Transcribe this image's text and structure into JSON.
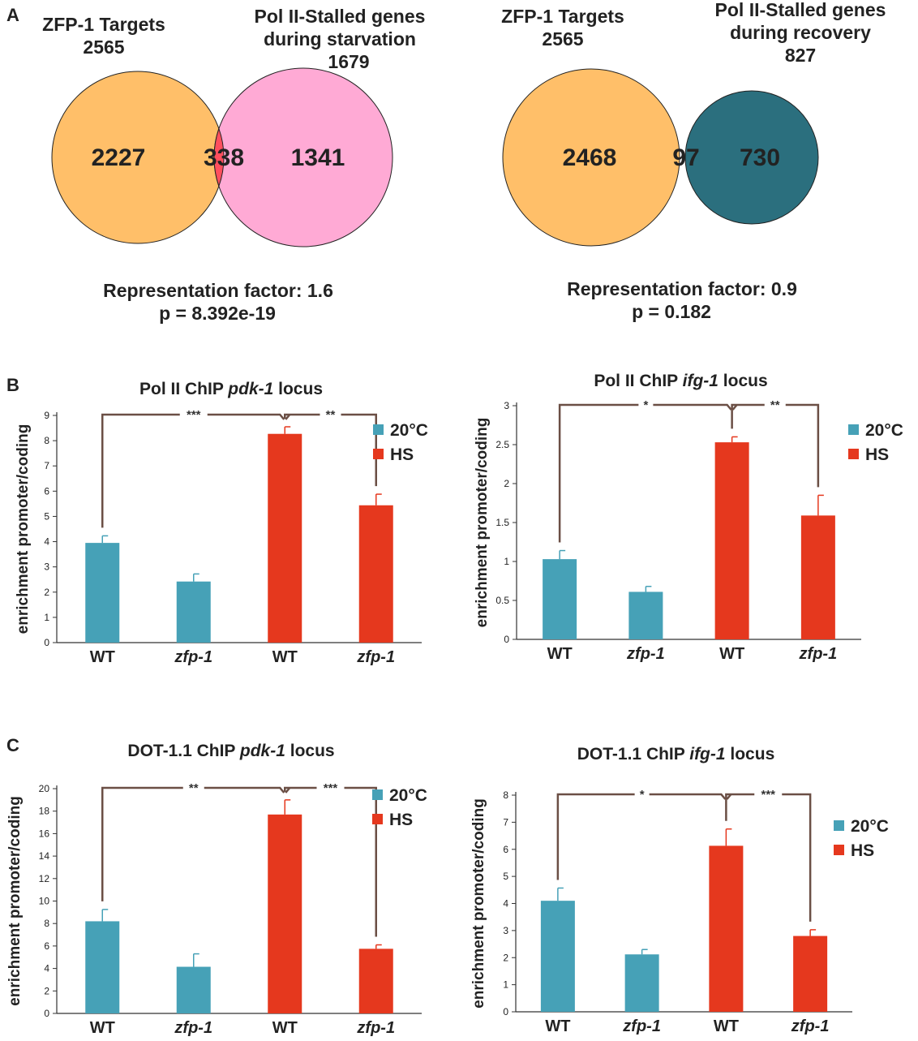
{
  "panels": {
    "a": "A",
    "b": "B",
    "c": "C"
  },
  "colors": {
    "zfp1_targets": "#ffbf69",
    "starvation": "#ffaad5",
    "overlap_starv": "#ff4f5e",
    "recovery": "#2b6f7e",
    "overlap_rec": "#c8c8bf",
    "c20": "#46a1b7",
    "hs": "#e5381e",
    "bracket": "#6b4f45",
    "axis": "#333333"
  },
  "venns": [
    {
      "left_label": "ZFP-1 Targets",
      "left_total": "2565",
      "right_label_1": "Pol II-Stalled genes",
      "right_label_2": "during starvation",
      "right_total": "1679",
      "left_only": "2227",
      "overlap": "338",
      "right_only": "1341",
      "factor": "Representation factor: 1.6",
      "p": "p =  8.392e-19"
    },
    {
      "left_label": "ZFP-1 Targets",
      "left_total": "2565",
      "right_label_1": "Pol II-Stalled genes",
      "right_label_2": "during recovery",
      "right_total": "827",
      "left_only": "2468",
      "overlap": "97",
      "right_only": "730",
      "factor": "Representation factor: 0.9",
      "p": "p = 0.182"
    }
  ],
  "chart_data": [
    {
      "type": "bar",
      "title_pre": "Pol II ChIP ",
      "title_gene": "pdk-1",
      "title_post": " locus",
      "ylabel": "enrichment promoter/coding",
      "categories": [
        "WT",
        "zfp-1",
        "WT",
        "zfp-1"
      ],
      "category_italic": [
        false,
        true,
        false,
        true
      ],
      "values": [
        3.95,
        2.42,
        8.27,
        5.44
      ],
      "errors": [
        0.28,
        0.3,
        0.28,
        0.44
      ],
      "series": [
        {
          "name": "20°C",
          "bars": [
            0,
            1
          ]
        },
        {
          "name": "HS",
          "bars": [
            2,
            3
          ]
        }
      ],
      "ylim": [
        0,
        9
      ],
      "yticks": [
        0,
        1,
        2,
        3,
        4,
        5,
        6,
        7,
        8,
        9
      ],
      "significance": [
        {
          "from": 0,
          "to": 2,
          "label": "***"
        },
        {
          "from": 2,
          "to": 3,
          "label": "**"
        }
      ]
    },
    {
      "type": "bar",
      "title_pre": "Pol II ChIP ",
      "title_gene": "ifg-1",
      "title_post": " locus",
      "ylabel": "enrichment promoter/coding",
      "categories": [
        "WT",
        "zfp-1",
        "WT",
        "zfp-1"
      ],
      "category_italic": [
        false,
        true,
        false,
        true
      ],
      "values": [
        1.03,
        0.61,
        2.53,
        1.59
      ],
      "errors": [
        0.11,
        0.07,
        0.07,
        0.26
      ],
      "series": [
        {
          "name": "20°C",
          "bars": [
            0,
            1
          ]
        },
        {
          "name": "HS",
          "bars": [
            2,
            3
          ]
        }
      ],
      "ylim": [
        0,
        3
      ],
      "yticks": [
        0,
        0.5,
        1,
        1.5,
        2,
        2.5,
        3
      ],
      "significance": [
        {
          "from": 0,
          "to": 2,
          "label": "*"
        },
        {
          "from": 2,
          "to": 3,
          "label": "**"
        }
      ]
    },
    {
      "type": "bar",
      "title_pre": "DOT-1.1 ChIP ",
      "title_gene": "pdk-1",
      "title_post": " locus",
      "ylabel": "enrichment promoter/coding",
      "categories": [
        "WT",
        "zfp-1",
        "WT",
        "zfp-1"
      ],
      "category_italic": [
        false,
        true,
        false,
        true
      ],
      "values": [
        8.2,
        4.15,
        17.7,
        5.75
      ],
      "errors": [
        1.05,
        1.15,
        1.3,
        0.35
      ],
      "series": [
        {
          "name": "20°C",
          "bars": [
            0,
            1
          ]
        },
        {
          "name": "HS",
          "bars": [
            2,
            3
          ]
        }
      ],
      "ylim": [
        0,
        20
      ],
      "yticks": [
        0,
        2,
        4,
        6,
        8,
        10,
        12,
        14,
        16,
        18,
        20
      ],
      "significance": [
        {
          "from": 0,
          "to": 2,
          "label": "**"
        },
        {
          "from": 2,
          "to": 3,
          "label": "***"
        }
      ]
    },
    {
      "type": "bar",
      "title_pre": "DOT-1.1 ChIP ",
      "title_gene": "ifg-1",
      "title_post": " locus",
      "ylabel": "enrichment promoter/coding",
      "categories": [
        "WT",
        "zfp-1",
        "WT",
        "zfp-1"
      ],
      "category_italic": [
        false,
        true,
        false,
        true
      ],
      "values": [
        4.1,
        2.12,
        6.13,
        2.8
      ],
      "errors": [
        0.47,
        0.18,
        0.62,
        0.23
      ],
      "series": [
        {
          "name": "20°C",
          "bars": [
            0,
            1
          ]
        },
        {
          "name": "HS",
          "bars": [
            2,
            3
          ]
        }
      ],
      "ylim": [
        0,
        8
      ],
      "yticks": [
        0,
        1,
        2,
        3,
        4,
        5,
        6,
        7,
        8
      ],
      "significance": [
        {
          "from": 0,
          "to": 2,
          "label": "*"
        },
        {
          "from": 2,
          "to": 3,
          "label": "***"
        }
      ]
    }
  ]
}
